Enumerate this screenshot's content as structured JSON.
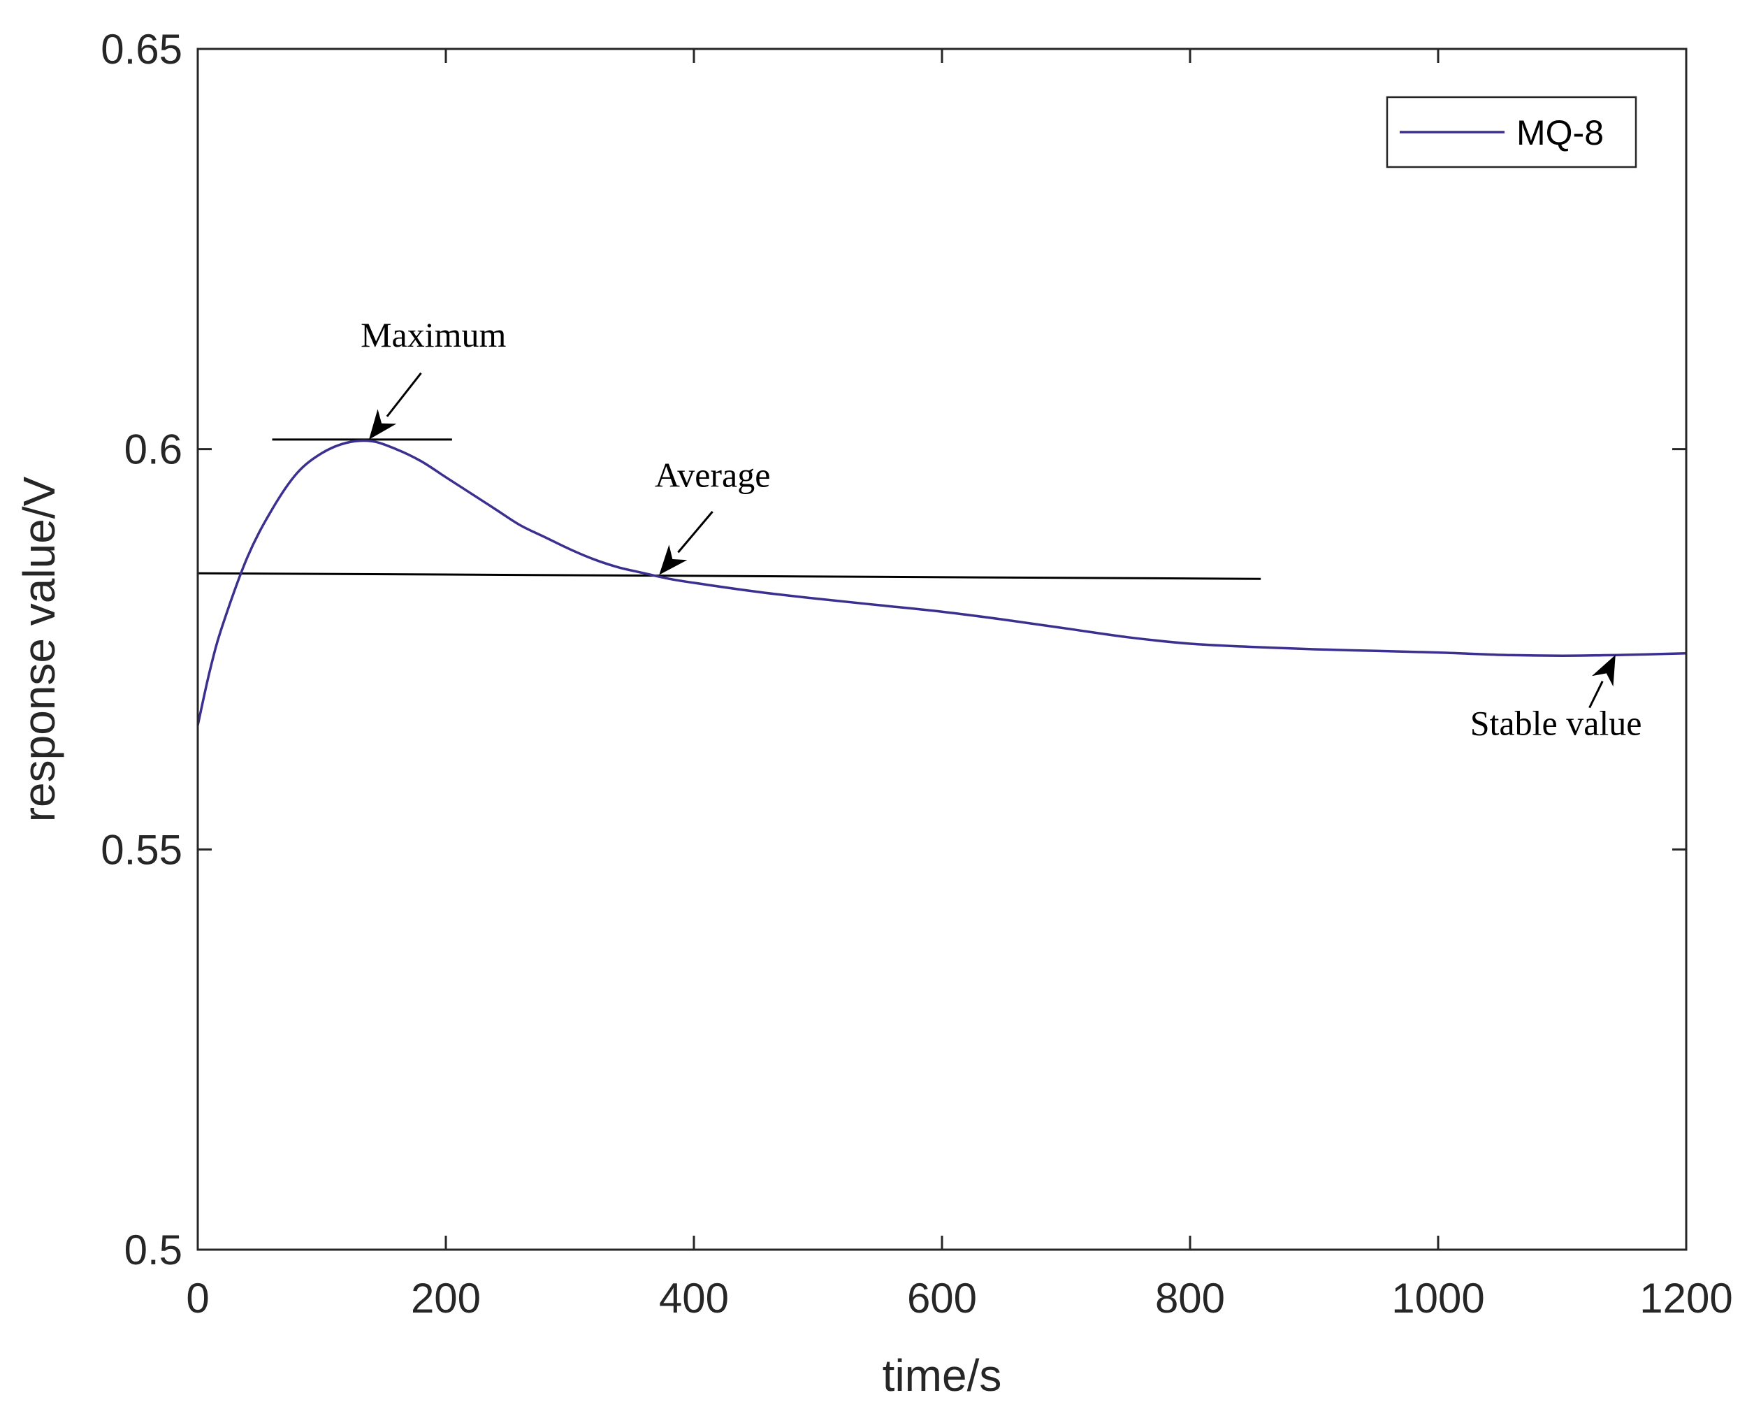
{
  "chart_data": {
    "type": "line",
    "xlabel": "time/s",
    "ylabel": "response value/V",
    "xlim": [
      0,
      1200
    ],
    "ylim": [
      0.5,
      0.65
    ],
    "xticks": [
      0,
      200,
      400,
      600,
      800,
      1000,
      1200
    ],
    "yticks": [
      0.5,
      0.55,
      0.6,
      0.65
    ],
    "xtick_labels": [
      "0",
      "200",
      "400",
      "600",
      "800",
      "1000",
      "1200"
    ],
    "ytick_labels": [
      "0.5",
      "0.55",
      "0.6",
      "0.65"
    ],
    "grid": false,
    "legend_position": "top-right",
    "series": [
      {
        "name": "MQ-8",
        "color": "#3b2f8f",
        "x": [
          0,
          10,
          20,
          40,
          60,
          80,
          100,
          120,
          140,
          160,
          180,
          200,
          220,
          240,
          260,
          280,
          300,
          320,
          340,
          360,
          380,
          400,
          450,
          500,
          550,
          600,
          650,
          700,
          750,
          800,
          850,
          900,
          950,
          1000,
          1050,
          1100,
          1150,
          1200
        ],
        "y": [
          0.5655,
          0.5725,
          0.578,
          0.5865,
          0.5925,
          0.597,
          0.5995,
          0.6008,
          0.601,
          0.6,
          0.5985,
          0.5965,
          0.5945,
          0.5925,
          0.5905,
          0.589,
          0.5875,
          0.5862,
          0.5852,
          0.5845,
          0.5838,
          0.5833,
          0.5822,
          0.5813,
          0.5805,
          0.5797,
          0.5787,
          0.5776,
          0.5765,
          0.5757,
          0.5753,
          0.575,
          0.5748,
          0.5746,
          0.5743,
          0.5742,
          0.5743,
          0.5745
        ]
      }
    ],
    "reference_lines": [
      {
        "x": [
          60,
          205
        ],
        "y": [
          0.6012,
          0.6012
        ]
      },
      {
        "x": [
          0,
          857
        ],
        "y": [
          0.5845,
          0.5838
        ]
      }
    ],
    "annotations": [
      {
        "text": "Maximum",
        "text_x": 190,
        "text_y": 0.6128,
        "arrow_from": [
          180,
          0.6095
        ],
        "arrow_to": [
          138,
          0.6012
        ]
      },
      {
        "text": "Average",
        "text_x": 415,
        "text_y": 0.5953,
        "arrow_from": [
          415,
          0.5922
        ],
        "arrow_to": [
          372,
          0.5843
        ]
      },
      {
        "text": "Stable value",
        "text_x": 1095,
        "text_y": 0.5643,
        "arrow_from": [
          1122,
          0.5677
        ],
        "arrow_to": [
          1143,
          0.5743
        ]
      }
    ]
  }
}
